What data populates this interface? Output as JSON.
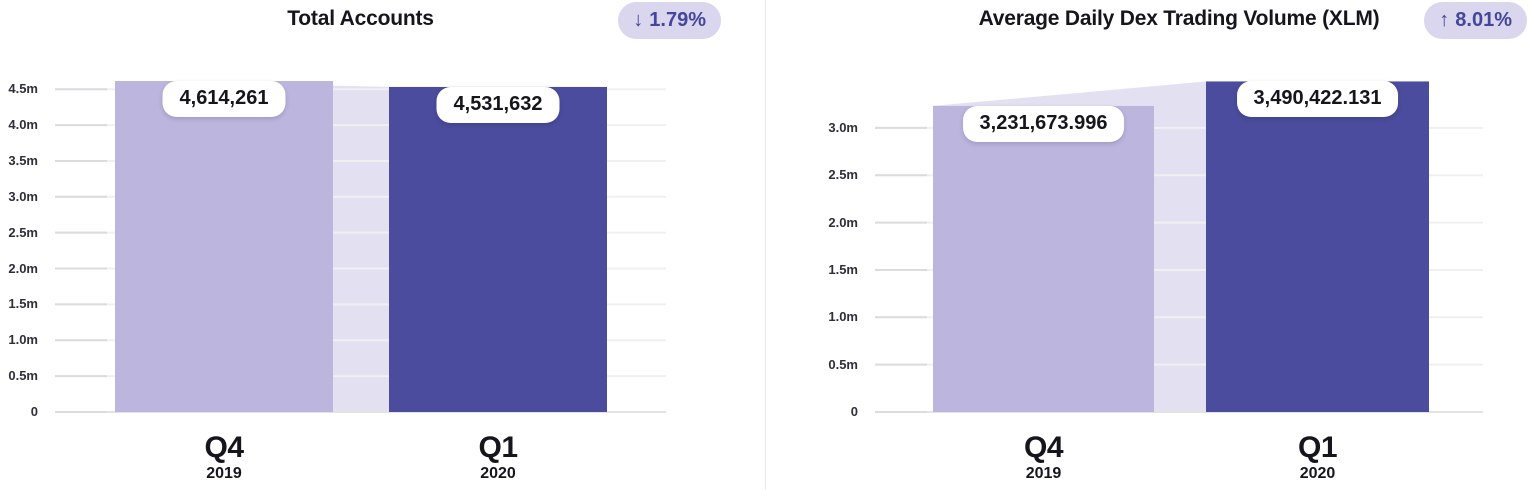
{
  "colors": {
    "bar_previous": "#bcb6de",
    "bar_current": "#4b4c9d",
    "area_fill": "#e3e1f1",
    "badge_bg": "#d9d6ee",
    "badge_text": "#45459b",
    "title_text": "#15151c",
    "tick_text": "#2f2f38",
    "gridline": "#f0f0f2",
    "grid_tick": "#dcdcdf",
    "zero_line": "#e3e3e6",
    "divider": "#e9e9ec",
    "pill_bg": "#ffffff"
  },
  "chart_data": [
    {
      "type": "bar",
      "title": "Total Accounts",
      "badge": {
        "arrow": "↓",
        "text": "1.79%",
        "direction": "down"
      },
      "categories": [
        "Q4",
        "Q1"
      ],
      "category_sublabels": [
        "2019",
        "2020"
      ],
      "values": [
        4614261,
        4531632
      ],
      "value_labels": [
        "4,614,261",
        "4,531,632"
      ],
      "ylim": [
        0,
        4740000
      ],
      "yticks": [
        0,
        500000,
        1000000,
        1500000,
        2000000,
        2500000,
        3000000,
        3500000,
        4000000,
        4500000
      ],
      "ytick_labels": [
        "0",
        "0.5m",
        "1.0m",
        "1.5m",
        "2.0m",
        "2.5m",
        "3.0m",
        "3.5m",
        "4.0m",
        "4.5m"
      ],
      "grid": true,
      "legend": null,
      "xlabel": "",
      "ylabel": ""
    },
    {
      "type": "bar",
      "title": "Average Daily Dex Trading Volume (XLM)",
      "badge": {
        "arrow": "↑",
        "text": "8.01%",
        "direction": "up"
      },
      "categories": [
        "Q4",
        "Q1"
      ],
      "category_sublabels": [
        "2019",
        "2020"
      ],
      "values": [
        3231673.996,
        3490422.131
      ],
      "value_labels": [
        "3,231,673.996",
        "3,490,422.131"
      ],
      "ylim": [
        0,
        3590000
      ],
      "yticks": [
        0,
        500000,
        1000000,
        1500000,
        2000000,
        2500000,
        3000000
      ],
      "ytick_labels": [
        "0",
        "0.5m",
        "1.0m",
        "1.5m",
        "2.0m",
        "2.5m",
        "3.0m"
      ],
      "grid": true,
      "legend": null,
      "xlabel": "",
      "ylabel": ""
    }
  ]
}
